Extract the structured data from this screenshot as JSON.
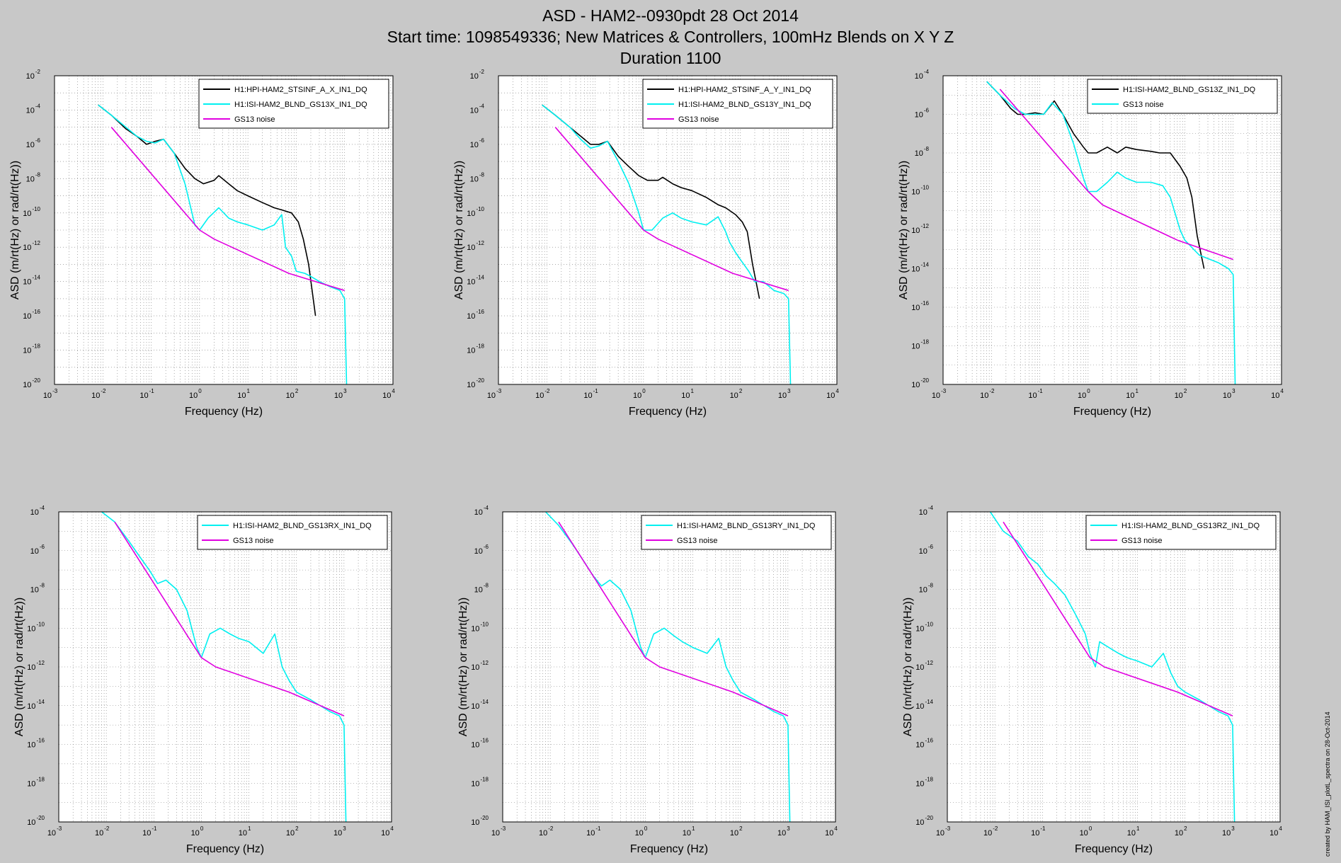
{
  "title": {
    "line1": "ASD - HAM2--0930pdt 28 Oct 2014",
    "line2": "Start time: 1098549336; New Matrices & Controllers, 100mHz Blends on  X Y Z",
    "line3": "Duration 1100"
  },
  "footer": "created by HAM_ISI_plotL_spectra on 28-Oct-2014",
  "colors": {
    "black": "#000000",
    "cyan": "#00f0f0",
    "magenta": "#e000e0",
    "grid": "#777777",
    "background": "#c8c8c8",
    "axes_bg": "#ffffff"
  },
  "chart_data": [
    {
      "type": "line",
      "scale": "log-log",
      "xlabel": "Frequency (Hz)",
      "ylabel": "ASD (m/rt(Hz) or rad/rt(Hz))",
      "xlim": [
        0.001,
        10000
      ],
      "ylim": [
        1e-20,
        0.01
      ],
      "xticks": [
        "10^-3",
        "10^-2",
        "10^-1",
        "10^0",
        "10^1",
        "10^2",
        "10^3",
        "10^4"
      ],
      "yticks": [
        "10^-20",
        "10^-18",
        "10^-16",
        "10^-14",
        "10^-12",
        "10^-10",
        "10^-8",
        "10^-6",
        "10^-4",
        "10^-2"
      ],
      "legend_position": "top-right",
      "grid": true,
      "series": [
        {
          "name": "H1:HPI-HAM2_STSINF_A_X_IN1_DQ",
          "color": "#000000",
          "x": [
            0.008,
            0.015,
            0.03,
            0.05,
            0.08,
            0.12,
            0.18,
            0.3,
            0.5,
            0.8,
            1.2,
            2,
            2.5,
            4,
            6,
            10,
            20,
            35,
            50,
            80,
            110,
            140,
            180,
            250
          ],
          "y": [
            0.0002,
            5e-05,
            8e-06,
            3e-06,
            1e-06,
            1.5e-06,
            2e-06,
            3e-07,
            4e-08,
            1e-08,
            5e-09,
            8e-09,
            1.5e-08,
            5e-09,
            2e-09,
            1e-09,
            4e-10,
            2e-10,
            1.5e-10,
            1e-10,
            3e-11,
            3e-12,
            1e-13,
            1e-16
          ]
        },
        {
          "name": "H1:ISI-HAM2_BLND_GS13X_IN1_DQ",
          "color": "#00f0f0",
          "x": [
            0.008,
            0.015,
            0.03,
            0.05,
            0.08,
            0.12,
            0.18,
            0.3,
            0.5,
            0.8,
            1.0,
            1.5,
            2.5,
            4,
            6,
            10,
            20,
            35,
            50,
            60,
            80,
            100,
            150,
            200,
            300,
            500,
            800,
            1000,
            1100
          ],
          "y": [
            0.0002,
            5e-05,
            1e-05,
            3e-06,
            1.5e-06,
            1.2e-06,
            2e-06,
            3e-07,
            5e-09,
            2e-11,
            1e-11,
            5e-11,
            2e-10,
            5e-11,
            3e-11,
            2e-11,
            1e-11,
            2e-11,
            8e-11,
            1e-12,
            3e-13,
            4e-14,
            3e-14,
            2e-14,
            1e-14,
            5e-15,
            3e-15,
            1e-15,
            1e-20
          ]
        },
        {
          "name": "GS13 noise",
          "color": "#e000e0",
          "x": [
            0.015,
            1.0,
            2.0,
            70,
            1000
          ],
          "y": [
            1e-05,
            1e-11,
            3e-12,
            3e-14,
            3e-15
          ]
        }
      ]
    },
    {
      "type": "line",
      "scale": "log-log",
      "xlabel": "Frequency (Hz)",
      "ylabel": "ASD (m/rt(Hz) or rad/rt(Hz))",
      "xlim": [
        0.001,
        10000
      ],
      "ylim": [
        1e-20,
        0.01
      ],
      "xticks": [
        "10^-3",
        "10^-2",
        "10^-1",
        "10^0",
        "10^1",
        "10^2",
        "10^3",
        "10^4"
      ],
      "yticks": [
        "10^-20",
        "10^-18",
        "10^-16",
        "10^-14",
        "10^-12",
        "10^-10",
        "10^-8",
        "10^-6",
        "10^-4",
        "10^-2"
      ],
      "legend_position": "top-right",
      "grid": true,
      "series": [
        {
          "name": "H1:HPI-HAM2_STSINF_A_Y_IN1_DQ",
          "color": "#000000",
          "x": [
            0.008,
            0.015,
            0.03,
            0.05,
            0.08,
            0.12,
            0.18,
            0.3,
            0.5,
            0.8,
            1.2,
            2,
            2.5,
            4,
            6,
            10,
            20,
            35,
            50,
            80,
            110,
            140,
            180,
            250
          ],
          "y": [
            0.0002,
            5e-05,
            1e-05,
            3e-06,
            1e-06,
            1e-06,
            1.5e-06,
            2e-07,
            5e-08,
            1.5e-08,
            8e-09,
            8e-09,
            1.2e-08,
            5e-09,
            3e-09,
            2e-09,
            8e-10,
            3e-10,
            2e-10,
            8e-11,
            3e-11,
            8e-12,
            1e-13,
            1e-15
          ]
        },
        {
          "name": "H1:ISI-HAM2_BLND_GS13Y_IN1_DQ",
          "color": "#00f0f0",
          "x": [
            0.008,
            0.015,
            0.03,
            0.05,
            0.08,
            0.12,
            0.18,
            0.3,
            0.5,
            0.8,
            1.0,
            1.5,
            2.5,
            4,
            6,
            10,
            20,
            35,
            50,
            60,
            80,
            100,
            150,
            200,
            300,
            500,
            800,
            1000,
            1100
          ],
          "y": [
            0.0002,
            5e-05,
            1e-05,
            2e-06,
            6e-07,
            8e-07,
            1.5e-06,
            1e-07,
            5e-09,
            1e-10,
            1e-11,
            1e-11,
            5e-11,
            1e-10,
            5e-11,
            3e-11,
            2e-11,
            6e-11,
            8e-12,
            2e-12,
            5e-13,
            2e-13,
            4e-14,
            1e-14,
            1e-14,
            3e-15,
            2e-15,
            1e-15,
            1e-20
          ]
        },
        {
          "name": "GS13 noise",
          "color": "#e000e0",
          "x": [
            0.015,
            1.0,
            2.0,
            70,
            1000
          ],
          "y": [
            1e-05,
            1e-11,
            3e-12,
            3e-14,
            3e-15
          ]
        }
      ]
    },
    {
      "type": "line",
      "scale": "log-log",
      "xlabel": "Frequency (Hz)",
      "ylabel": "ASD (m/rt(Hz) or rad/rt(Hz))",
      "xlim": [
        0.001,
        10000
      ],
      "ylim": [
        1e-20,
        0.0001
      ],
      "xticks": [
        "10^-3",
        "10^-2",
        "10^-1",
        "10^0",
        "10^1",
        "10^2",
        "10^3",
        "10^4"
      ],
      "yticks": [
        "10^-20",
        "10^-18",
        "10^-16",
        "10^-14",
        "10^-12",
        "10^-10",
        "10^-8",
        "10^-6",
        "10^-4"
      ],
      "legend_position": "top-right",
      "grid": true,
      "series": [
        {
          "name": "H1:ISI-HAM2_BLND_GS13Z_IN1_DQ",
          "color": "#000000",
          "x": [
            0.008,
            0.015,
            0.025,
            0.035,
            0.05,
            0.08,
            0.12,
            0.2,
            0.3,
            0.5,
            0.8,
            1.0,
            1.5,
            2.5,
            4,
            6,
            10,
            20,
            30,
            50,
            80,
            110,
            140,
            180,
            250
          ],
          "y": [
            5e-05,
            1e-05,
            2e-06,
            1e-06,
            1e-06,
            1.2e-06,
            1e-06,
            5e-06,
            1e-06,
            1e-07,
            2e-08,
            1e-08,
            1e-08,
            2e-08,
            1e-08,
            2e-08,
            1.5e-08,
            1.2e-08,
            1e-08,
            1e-08,
            2e-09,
            5e-10,
            5e-11,
            5e-13,
            1e-14
          ]
        },
        {
          "name": "GS13 noise",
          "color": "#00f0f0",
          "x": [
            0.008,
            0.015,
            0.03,
            0.05,
            0.08,
            0.12,
            0.18,
            0.3,
            0.5,
            0.8,
            1.0,
            1.5,
            2.5,
            4,
            6,
            10,
            20,
            35,
            50,
            80,
            100,
            200,
            500,
            800,
            1000,
            1100
          ],
          "y": [
            5e-05,
            1e-05,
            2e-06,
            1e-06,
            1e-06,
            1e-06,
            4e-06,
            1e-06,
            3e-08,
            5e-10,
            1e-10,
            1e-10,
            3e-10,
            1e-09,
            5e-10,
            3e-10,
            3e-10,
            2e-10,
            5e-11,
            1e-12,
            3e-13,
            5e-14,
            2e-14,
            1e-14,
            5e-15,
            1e-20
          ]
        },
        {
          "name": "",
          "color": "#e000e0",
          "x": [
            0.015,
            1.0,
            2.0,
            70,
            1000
          ],
          "y": [
            2e-05,
            1e-10,
            2e-11,
            3e-13,
            3e-14
          ]
        }
      ]
    },
    {
      "type": "line",
      "scale": "log-log",
      "xlabel": "Frequency (Hz)",
      "ylabel": "ASD (m/rt(Hz) or rad/rt(Hz))",
      "xlim": [
        0.001,
        10000
      ],
      "ylim": [
        1e-20,
        0.0001
      ],
      "xticks": [
        "10^-3",
        "10^-2",
        "10^-1",
        "10^0",
        "10^1",
        "10^2",
        "10^3",
        "10^4"
      ],
      "yticks": [
        "10^-20",
        "10^-18",
        "10^-16",
        "10^-14",
        "10^-12",
        "10^-10",
        "10^-8",
        "10^-6",
        "10^-4"
      ],
      "legend_position": "top-right",
      "grid": true,
      "series": [
        {
          "name": "H1:ISI-HAM2_BLND_GS13RX_IN1_DQ",
          "color": "#00f0f0",
          "x": [
            0.008,
            0.015,
            0.03,
            0.05,
            0.08,
            0.12,
            0.18,
            0.3,
            0.5,
            0.8,
            1.0,
            1.5,
            2.5,
            4,
            6,
            10,
            20,
            35,
            50,
            70,
            100,
            200,
            500,
            800,
            1000,
            1100
          ],
          "y": [
            0.0001,
            3e-05,
            3e-06,
            5e-07,
            1e-07,
            2e-08,
            3e-08,
            1e-08,
            8e-10,
            1e-11,
            3e-12,
            5e-11,
            1e-10,
            5e-11,
            3e-11,
            2e-11,
            5e-12,
            5e-11,
            1e-12,
            2e-13,
            5e-14,
            2e-14,
            5e-15,
            3e-15,
            1e-15,
            1e-20
          ]
        },
        {
          "name": "GS13 noise",
          "color": "#e000e0",
          "x": [
            0.015,
            1.0,
            2.0,
            70,
            1000
          ],
          "y": [
            3e-05,
            3e-12,
            1e-12,
            5e-14,
            3e-15
          ]
        }
      ]
    },
    {
      "type": "line",
      "scale": "log-log",
      "xlabel": "Frequency (Hz)",
      "ylabel": "ASD (m/rt(Hz) or rad/rt(Hz))",
      "xlim": [
        0.001,
        10000
      ],
      "ylim": [
        1e-20,
        0.0001
      ],
      "xticks": [
        "10^-3",
        "10^-2",
        "10^-1",
        "10^0",
        "10^1",
        "10^2",
        "10^3",
        "10^4"
      ],
      "yticks": [
        "10^-20",
        "10^-18",
        "10^-16",
        "10^-14",
        "10^-12",
        "10^-10",
        "10^-8",
        "10^-6",
        "10^-4"
      ],
      "legend_position": "top-right",
      "grid": true,
      "series": [
        {
          "name": "H1:ISI-HAM2_BLND_GS13RY_IN1_DQ",
          "color": "#00f0f0",
          "x": [
            0.008,
            0.015,
            0.03,
            0.05,
            0.08,
            0.12,
            0.18,
            0.3,
            0.5,
            0.8,
            1.0,
            1.5,
            2.5,
            4,
            6,
            10,
            20,
            35,
            50,
            70,
            100,
            200,
            500,
            800,
            1000,
            1100
          ],
          "y": [
            0.0001,
            2e-05,
            2e-06,
            3e-07,
            5e-08,
            1.5e-08,
            3e-08,
            1e-08,
            8e-10,
            1e-11,
            3e-12,
            5e-11,
            1e-10,
            4e-11,
            2e-11,
            1e-11,
            5e-12,
            3e-11,
            1e-12,
            2e-13,
            5e-14,
            2e-14,
            5e-15,
            3e-15,
            1e-15,
            1e-20
          ]
        },
        {
          "name": "GS13 noise",
          "color": "#e000e0",
          "x": [
            0.015,
            1.0,
            2.0,
            70,
            1000
          ],
          "y": [
            3e-05,
            3e-12,
            1e-12,
            5e-14,
            3e-15
          ]
        }
      ]
    },
    {
      "type": "line",
      "scale": "log-log",
      "xlabel": "Frequency (Hz)",
      "ylabel": "ASD (m/rt(Hz) or rad/rt(Hz))",
      "xlim": [
        0.001,
        10000
      ],
      "ylim": [
        1e-20,
        0.0001
      ],
      "xticks": [
        "10^-3",
        "10^-2",
        "10^-1",
        "10^0",
        "10^1",
        "10^2",
        "10^3",
        "10^4"
      ],
      "yticks": [
        "10^-20",
        "10^-18",
        "10^-16",
        "10^-14",
        "10^-12",
        "10^-10",
        "10^-8",
        "10^-6",
        "10^-4"
      ],
      "legend_position": "top-right",
      "grid": true,
      "series": [
        {
          "name": "H1:ISI-HAM2_BLND_GS13RZ_IN1_DQ",
          "color": "#00f0f0",
          "x": [
            0.008,
            0.015,
            0.03,
            0.05,
            0.08,
            0.12,
            0.18,
            0.3,
            0.5,
            0.8,
            1.0,
            1.3,
            1.6,
            2.5,
            4,
            6,
            10,
            20,
            35,
            50,
            70,
            100,
            200,
            500,
            800,
            1000,
            1100
          ],
          "y": [
            0.0001,
            1e-05,
            3e-06,
            5e-07,
            2e-07,
            5e-08,
            2e-08,
            5e-09,
            5e-10,
            5e-11,
            5e-12,
            1e-12,
            2e-11,
            1e-11,
            5e-12,
            3e-12,
            2e-12,
            1e-12,
            5e-12,
            5e-13,
            1e-13,
            5e-14,
            2e-14,
            5e-15,
            3e-15,
            1e-15,
            1e-20
          ]
        },
        {
          "name": "GS13 noise",
          "color": "#e000e0",
          "x": [
            0.015,
            1.0,
            2.0,
            70,
            1000
          ],
          "y": [
            3e-05,
            3e-12,
            1e-12,
            5e-14,
            3e-15
          ]
        }
      ]
    }
  ]
}
